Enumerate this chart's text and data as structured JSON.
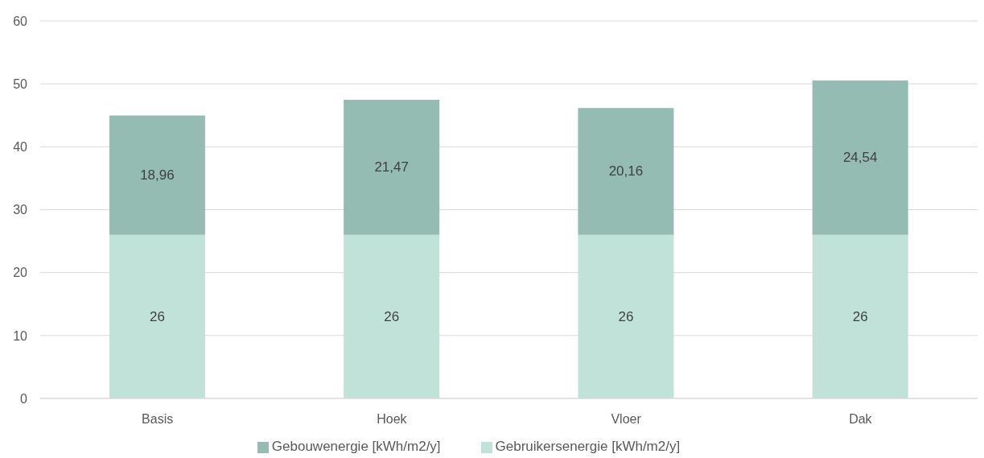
{
  "chart_data": {
    "type": "bar",
    "stacked": true,
    "categories": [
      "Basis",
      "Hoek",
      "Vloer",
      "Dak"
    ],
    "series": [
      {
        "name": "Gebruikersenergie [kWh/m2/y]",
        "color": "#c0e2d9",
        "values": [
          26,
          26,
          26,
          26
        ],
        "value_labels": [
          "26",
          "26",
          "26",
          "26"
        ]
      },
      {
        "name": "Gebouwenergie [kWh/m2/y]",
        "color": "#94bcb3",
        "values": [
          18.96,
          21.47,
          20.16,
          24.54
        ],
        "value_labels": [
          "18,96",
          "21,47",
          "20,16",
          "24,54"
        ]
      }
    ],
    "ylim": [
      0,
      60
    ],
    "yticks": [
      0,
      10,
      20,
      30,
      40,
      50,
      60
    ],
    "grid": "y",
    "legend": "bottom"
  }
}
